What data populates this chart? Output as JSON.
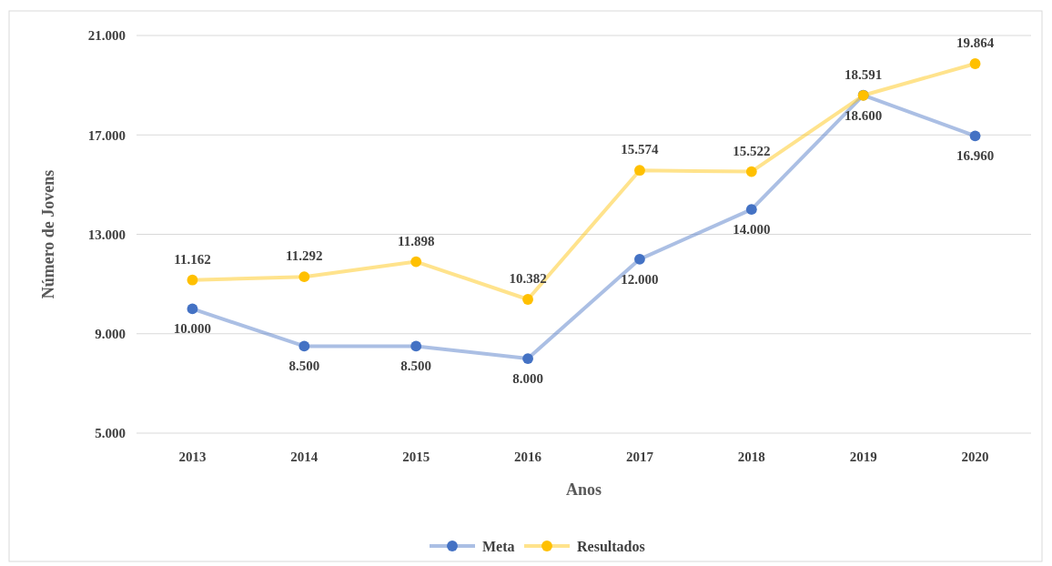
{
  "chart_data": {
    "type": "line",
    "xlabel": "Anos",
    "ylabel": "Número de Jovens",
    "categories": [
      "2013",
      "2014",
      "2015",
      "2016",
      "2017",
      "2018",
      "2019",
      "2020"
    ],
    "series": [
      {
        "name": "Meta",
        "color": "#4472c4",
        "values": [
          10000,
          8500,
          8500,
          8000,
          12000,
          14000,
          18600,
          16960
        ],
        "value_labels": [
          "10.000",
          "8.500",
          "8.500",
          "8.000",
          "12.000",
          "14.000",
          "18.600",
          "16.960"
        ]
      },
      {
        "name": "Resultados",
        "color": "#ffc000",
        "values": [
          11162,
          11292,
          11898,
          10382,
          15574,
          15522,
          18591,
          19864
        ],
        "value_labels": [
          "11.162",
          "11.292",
          "11.898",
          "10.382",
          "15.574",
          "15.522",
          "18.591",
          "19.864"
        ]
      }
    ],
    "ylim": [
      5000,
      21000
    ],
    "yticks": [
      {
        "value": 5000,
        "label": "5.000"
      },
      {
        "value": 9000,
        "label": "9.000"
      },
      {
        "value": 13000,
        "label": "13.000"
      },
      {
        "value": 17000,
        "label": "17.000"
      },
      {
        "value": 21000,
        "label": "21.000"
      }
    ],
    "grid": "y",
    "legend": "bottom",
    "marker": "circle",
    "line_style": "solid"
  }
}
